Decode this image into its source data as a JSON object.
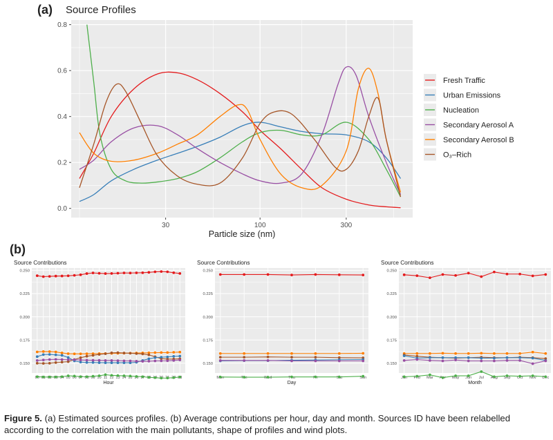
{
  "colors": {
    "fresh_traffic": "#E41A1C",
    "urban": "#377EB8",
    "nucleation": "#4DAF4A",
    "sec_a": "#984EA3",
    "sec_b": "#FF7F00",
    "o3": "#A65628",
    "panel_bg": "#EBEBEB",
    "grid": "#FFFFFF"
  },
  "panel_a": {
    "tag": "(a)",
    "title": "Source Profiles"
  },
  "panel_b": {
    "tag": "(b)"
  },
  "caption": {
    "label": "Figure 5.",
    "text": "(a) Estimated sources profiles. (b) Average contributions per hour, day and month. Sources ID have been relabelled according to the correlation with the main pollutants, shape of profiles and wind plots."
  },
  "chart_data": [
    {
      "id": "source_profiles",
      "type": "line",
      "title": "Source Profiles",
      "xlabel": "Particle size (nm)",
      "ylabel": "",
      "xscale": "log",
      "xlim": [
        9,
        700
      ],
      "ylim": [
        -0.04,
        0.82
      ],
      "xticks": [
        30,
        100,
        300
      ],
      "xtick_labels": [
        "30",
        "100",
        "300"
      ],
      "yticks": [
        0.0,
        0.2,
        0.4,
        0.6,
        0.8
      ],
      "ytick_labels": [
        "0.0",
        "0.2",
        "0.4",
        "0.6",
        "0.8"
      ],
      "grid": true,
      "legend_position": "right",
      "series": [
        {
          "name": "Fresh Traffic",
          "color_key": "fresh_traffic",
          "x": [
            10,
            12,
            15,
            20,
            27,
            35,
            45,
            60,
            80,
            100,
            130,
            170,
            220,
            300,
            400,
            500,
            600
          ],
          "y": [
            0.13,
            0.24,
            0.4,
            0.52,
            0.585,
            0.59,
            0.56,
            0.5,
            0.42,
            0.34,
            0.26,
            0.17,
            0.09,
            0.04,
            0.015,
            0.007,
            0.003
          ]
        },
        {
          "name": "Urban Emissions",
          "color_key": "urban",
          "x": [
            10,
            12,
            15,
            20,
            27,
            35,
            45,
            60,
            80,
            100,
            130,
            170,
            220,
            300,
            400,
            500,
            600
          ],
          "y": [
            0.03,
            0.06,
            0.12,
            0.17,
            0.21,
            0.24,
            0.27,
            0.31,
            0.36,
            0.375,
            0.355,
            0.335,
            0.325,
            0.32,
            0.29,
            0.22,
            0.13
          ]
        },
        {
          "name": "Nucleation",
          "color_key": "nucleation",
          "x": [
            11,
            12,
            13,
            15,
            18,
            22,
            27,
            35,
            45,
            60,
            80,
            100,
            130,
            170,
            220,
            300,
            400,
            500,
            600
          ],
          "y": [
            0.8,
            0.55,
            0.32,
            0.17,
            0.12,
            0.11,
            0.115,
            0.13,
            0.16,
            0.22,
            0.29,
            0.33,
            0.34,
            0.32,
            0.32,
            0.375,
            0.3,
            0.17,
            0.05
          ]
        },
        {
          "name": "Secondary Aerosol A",
          "color_key": "sec_a",
          "x": [
            10,
            12,
            15,
            20,
            27,
            35,
            45,
            60,
            80,
            100,
            130,
            170,
            220,
            270,
            300,
            340,
            400,
            500,
            600
          ],
          "y": [
            0.17,
            0.21,
            0.29,
            0.35,
            0.36,
            0.32,
            0.26,
            0.2,
            0.15,
            0.12,
            0.11,
            0.15,
            0.32,
            0.54,
            0.615,
            0.58,
            0.4,
            0.2,
            0.06
          ]
        },
        {
          "name": "Secondary Aerosol B",
          "color_key": "sec_b",
          "x": [
            10,
            12,
            15,
            20,
            27,
            35,
            45,
            60,
            75,
            85,
            100,
            130,
            170,
            220,
            300,
            350,
            400,
            450,
            500,
            600
          ],
          "y": [
            0.33,
            0.24,
            0.205,
            0.21,
            0.24,
            0.28,
            0.32,
            0.4,
            0.45,
            0.43,
            0.3,
            0.15,
            0.09,
            0.1,
            0.25,
            0.52,
            0.61,
            0.5,
            0.3,
            0.07
          ]
        },
        {
          "name": "O₃–Rich",
          "color_key": "o3",
          "x": [
            10,
            12,
            14,
            16,
            18,
            22,
            27,
            35,
            45,
            60,
            80,
            100,
            120,
            150,
            200,
            260,
            300,
            350,
            400,
            450,
            500,
            600
          ],
          "y": [
            0.09,
            0.28,
            0.46,
            0.54,
            0.51,
            0.37,
            0.23,
            0.14,
            0.105,
            0.11,
            0.22,
            0.37,
            0.42,
            0.41,
            0.3,
            0.18,
            0.17,
            0.25,
            0.4,
            0.48,
            0.3,
            0.05
          ]
        }
      ]
    },
    {
      "id": "contrib_hour",
      "type": "line",
      "title": "Source Contributions",
      "xlabel": "Hour",
      "ylabel": "",
      "categories": [
        "00",
        "01",
        "02",
        "03",
        "04",
        "05",
        "06",
        "07",
        "08",
        "09",
        "10",
        "11",
        "12",
        "13",
        "14",
        "15",
        "16",
        "17",
        "18",
        "19",
        "20",
        "21",
        "22",
        "23"
      ],
      "ylim": [
        0.1395,
        0.2525
      ],
      "yticks": [
        0.15,
        0.175,
        0.2,
        0.225,
        0.25
      ],
      "ytick_labels": [
        "0.150",
        "0.175",
        "0.200",
        "0.225",
        "0.250"
      ],
      "grid": true,
      "series": [
        {
          "name": "Fresh Traffic",
          "color_key": "fresh_traffic",
          "values": [
            0.2442,
            0.2432,
            0.2435,
            0.2438,
            0.2439,
            0.2441,
            0.2446,
            0.2452,
            0.2465,
            0.2472,
            0.2468,
            0.2465,
            0.2466,
            0.2469,
            0.2472,
            0.2471,
            0.2473,
            0.2474,
            0.2478,
            0.2484,
            0.2487,
            0.2484,
            0.2474,
            0.2466
          ]
        },
        {
          "name": "Secondary Aerosol B",
          "color_key": "sec_b",
          "values": [
            0.1622,
            0.1626,
            0.1625,
            0.1622,
            0.1611,
            0.1603,
            0.1601,
            0.1601,
            0.1602,
            0.1603,
            0.1604,
            0.1605,
            0.1606,
            0.1607,
            0.1608,
            0.1609,
            0.161,
            0.1611,
            0.1612,
            0.1614,
            0.1615,
            0.1615,
            0.1618,
            0.162
          ]
        },
        {
          "name": "O₃–Rich",
          "color_key": "o3",
          "values": [
            0.15,
            0.1498,
            0.15,
            0.1507,
            0.1512,
            0.1517,
            0.154,
            0.156,
            0.1575,
            0.1585,
            0.1595,
            0.1602,
            0.1612,
            0.1614,
            0.161,
            0.1608,
            0.1604,
            0.16,
            0.159,
            0.157,
            0.155,
            0.1545,
            0.1545,
            0.1548
          ]
        },
        {
          "name": "Urban Emissions",
          "color_key": "urban",
          "values": [
            0.1571,
            0.1593,
            0.1595,
            0.159,
            0.1585,
            0.1562,
            0.1525,
            0.1512,
            0.1508,
            0.1508,
            0.1506,
            0.1505,
            0.1505,
            0.1505,
            0.1505,
            0.1505,
            0.151,
            0.153,
            0.1548,
            0.156,
            0.1565,
            0.1568,
            0.1574,
            0.1577
          ]
        },
        {
          "name": "Secondary Aerosol A",
          "color_key": "sec_a",
          "values": [
            0.153,
            0.1535,
            0.154,
            0.1542,
            0.154,
            0.1538,
            0.1538,
            0.1535,
            0.1533,
            0.1532,
            0.1531,
            0.153,
            0.153,
            0.1528,
            0.1526,
            0.1525,
            0.1522,
            0.152,
            0.1522,
            0.1525,
            0.1526,
            0.1527,
            0.153,
            0.1535
          ]
        },
        {
          "name": "Nucleation",
          "color_key": "nucleation",
          "values": [
            0.1355,
            0.1352,
            0.1352,
            0.1352,
            0.1355,
            0.1365,
            0.1362,
            0.1356,
            0.1355,
            0.136,
            0.1365,
            0.1377,
            0.137,
            0.1367,
            0.1365,
            0.1362,
            0.1358,
            0.1355,
            0.1348,
            0.1345,
            0.134,
            0.1341,
            0.1345,
            0.1352
          ]
        }
      ]
    },
    {
      "id": "contrib_day",
      "type": "line",
      "title": "Source Contributions",
      "xlabel": "Day",
      "ylabel": "",
      "categories": [
        "Mon",
        "Tue",
        "Wed",
        "Thu",
        "Fri",
        "Sat",
        "Sun"
      ],
      "ylim": [
        0.1395,
        0.2525
      ],
      "yticks": [
        0.15,
        0.175,
        0.2,
        0.225,
        0.25
      ],
      "ytick_labels": [
        "0.150",
        "0.175",
        "0.200",
        "0.225",
        "0.250"
      ],
      "grid": true,
      "series": [
        {
          "name": "Fresh Traffic",
          "color_key": "fresh_traffic",
          "values": [
            0.2455,
            0.2455,
            0.2455,
            0.245,
            0.2455,
            0.2452,
            0.245
          ]
        },
        {
          "name": "Secondary Aerosol B",
          "color_key": "sec_b",
          "values": [
            0.1605,
            0.1605,
            0.1605,
            0.1605,
            0.1605,
            0.1605,
            0.1607
          ]
        },
        {
          "name": "O₃–Rich",
          "color_key": "o3",
          "values": [
            0.1565,
            0.1565,
            0.1568,
            0.1565,
            0.1565,
            0.156,
            0.1558
          ]
        },
        {
          "name": "Urban Emissions",
          "color_key": "urban",
          "values": [
            0.1525,
            0.1528,
            0.1528,
            0.1532,
            0.1535,
            0.1538,
            0.154
          ]
        },
        {
          "name": "Secondary Aerosol A",
          "color_key": "sec_a",
          "values": [
            0.153,
            0.153,
            0.153,
            0.1525,
            0.1525,
            0.1525,
            0.1525
          ]
        },
        {
          "name": "Nucleation",
          "color_key": "nucleation",
          "values": [
            0.1352,
            0.135,
            0.135,
            0.1353,
            0.1353,
            0.1353,
            0.136
          ]
        }
      ]
    },
    {
      "id": "contrib_month",
      "type": "line",
      "title": "Source Contributions",
      "xlabel": "Month",
      "ylabel": "",
      "categories": [
        "Jan",
        "Feb",
        "Mar",
        "Apr",
        "May",
        "Jun",
        "Jul",
        "Aug",
        "Sep",
        "Oct",
        "Nov",
        "Dec"
      ],
      "ylim": [
        0.1395,
        0.2525
      ],
      "yticks": [
        0.15,
        0.175,
        0.2,
        0.225,
        0.25
      ],
      "ytick_labels": [
        "0.150",
        "0.175",
        "0.200",
        "0.225",
        "0.250"
      ],
      "grid": true,
      "series": [
        {
          "name": "Fresh Traffic",
          "color_key": "fresh_traffic",
          "values": [
            0.2452,
            0.2442,
            0.242,
            0.2455,
            0.2445,
            0.247,
            0.2432,
            0.2482,
            0.246,
            0.246,
            0.244,
            0.2455
          ]
        },
        {
          "name": "Secondary Aerosol B",
          "color_key": "sec_b",
          "values": [
            0.1605,
            0.1605,
            0.1605,
            0.1608,
            0.1605,
            0.1605,
            0.1608,
            0.1605,
            0.1605,
            0.1605,
            0.162,
            0.1605
          ]
        },
        {
          "name": "O₃–Rich",
          "color_key": "o3",
          "values": [
            0.159,
            0.1575,
            0.1565,
            0.156,
            0.1555,
            0.156,
            0.1565,
            0.156,
            0.156,
            0.1565,
            0.156,
            0.155
          ]
        },
        {
          "name": "Urban Emissions",
          "color_key": "urban",
          "values": [
            0.158,
            0.1555,
            0.156,
            0.156,
            0.156,
            0.156,
            0.1555,
            0.1555,
            0.156,
            0.156,
            0.1555,
            0.153
          ]
        },
        {
          "name": "Secondary Aerosol A",
          "color_key": "sec_a",
          "values": [
            0.153,
            0.154,
            0.153,
            0.1525,
            0.1535,
            0.1525,
            0.1525,
            0.1525,
            0.153,
            0.153,
            0.1495,
            0.1525
          ]
        },
        {
          "name": "Nucleation",
          "color_key": "nucleation",
          "values": [
            0.1355,
            0.136,
            0.1375,
            0.1345,
            0.1365,
            0.1365,
            0.141,
            0.1355,
            0.1365,
            0.136,
            0.1365,
            0.1355
          ]
        }
      ]
    }
  ]
}
